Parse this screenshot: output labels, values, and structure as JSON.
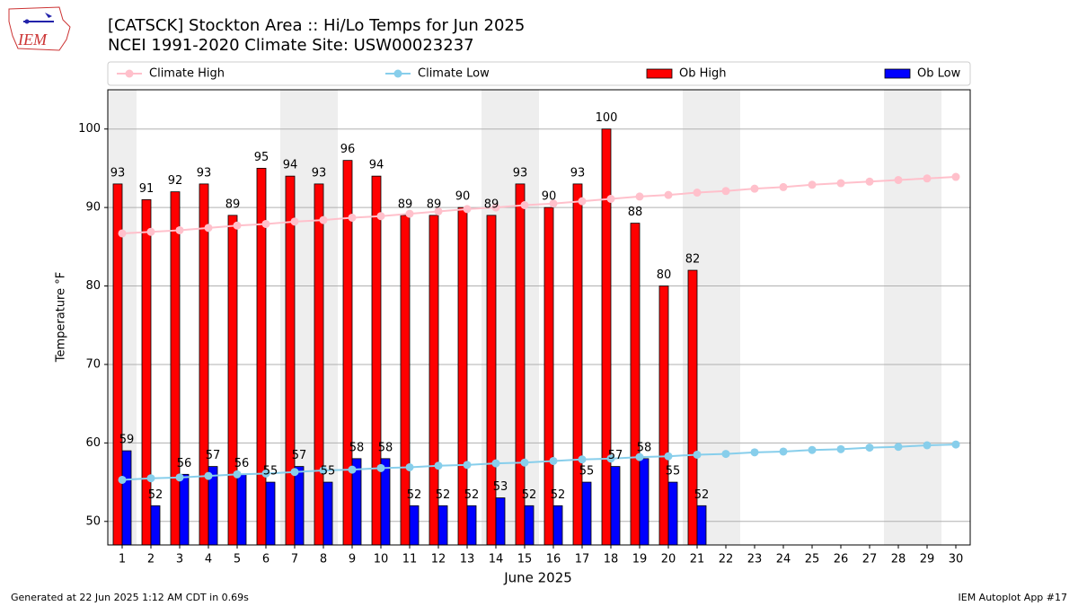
{
  "logo_text": "IEM",
  "footer_left": "Generated at 22 Jun 2025 1:12 AM CDT in 0.69s",
  "footer_right": "IEM Autoplot App #17",
  "chart_data": {
    "type": "bar",
    "title": "[CATSCK] Stockton Area :: Hi/Lo Temps for Jun 2025",
    "subtitle": "NCEI 1991-2020 Climate Site: USW00023237",
    "x_label": "June 2025",
    "y_label": "Temperature °F",
    "categories": [
      "1",
      "2",
      "3",
      "4",
      "5",
      "6",
      "7",
      "8",
      "9",
      "10",
      "11",
      "12",
      "13",
      "14",
      "15",
      "16",
      "17",
      "18",
      "19",
      "20",
      "21",
      "22",
      "23",
      "24",
      "25",
      "26",
      "27",
      "28",
      "29",
      "30"
    ],
    "ylim": [
      47,
      105
    ],
    "yticks": [
      50,
      60,
      70,
      80,
      90,
      100
    ],
    "grid": true,
    "series": [
      {
        "name": "Climate High",
        "type": "line",
        "color": "#ffc0cb",
        "values": [
          86.7,
          86.9,
          87.1,
          87.4,
          87.7,
          87.9,
          88.2,
          88.4,
          88.7,
          88.9,
          89.2,
          89.5,
          89.8,
          90.0,
          90.3,
          90.5,
          90.8,
          91.1,
          91.4,
          91.6,
          91.9,
          92.1,
          92.4,
          92.6,
          92.9,
          93.1,
          93.3,
          93.5,
          93.7,
          93.9
        ]
      },
      {
        "name": "Climate Low",
        "type": "line",
        "color": "#87ceeb",
        "values": [
          55.3,
          55.5,
          55.6,
          55.8,
          56.0,
          56.1,
          56.3,
          56.5,
          56.6,
          56.8,
          56.9,
          57.1,
          57.2,
          57.4,
          57.5,
          57.7,
          57.9,
          58.0,
          58.2,
          58.3,
          58.5,
          58.6,
          58.8,
          58.9,
          59.1,
          59.2,
          59.4,
          59.5,
          59.7,
          59.8
        ]
      },
      {
        "name": "Ob High",
        "type": "bar",
        "color": "#ff0000",
        "values": [
          93,
          91,
          92,
          93,
          89,
          95,
          94,
          93,
          96,
          94,
          89,
          89,
          90,
          89,
          93,
          90,
          93,
          100,
          88,
          80,
          82,
          null,
          null,
          null,
          null,
          null,
          null,
          null,
          null,
          null
        ]
      },
      {
        "name": "Ob Low",
        "type": "bar",
        "color": "#0000ff",
        "values": [
          59,
          52,
          56,
          57,
          56,
          55,
          57,
          55,
          58,
          58,
          52,
          52,
          52,
          53,
          52,
          52,
          55,
          57,
          58,
          55,
          52,
          null,
          null,
          null,
          null,
          null,
          null,
          null,
          null,
          null
        ]
      }
    ]
  }
}
